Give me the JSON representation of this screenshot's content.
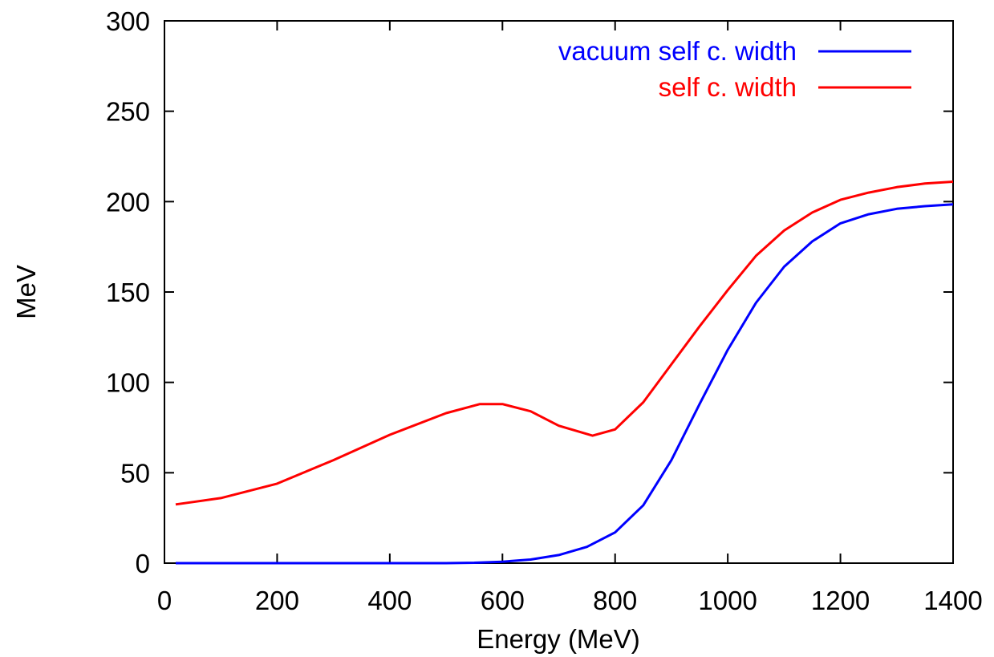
{
  "chart_data": {
    "type": "line",
    "title": "",
    "xlabel": "Energy (MeV)",
    "ylabel": "MeV",
    "xlim": [
      0,
      1400
    ],
    "ylim": [
      0,
      300
    ],
    "xticks": [
      0,
      200,
      400,
      600,
      800,
      1000,
      1200,
      1400
    ],
    "yticks": [
      0,
      50,
      100,
      150,
      200,
      250,
      300
    ],
    "grid": false,
    "legend_position": "top-right",
    "series": [
      {
        "name": "vacuum self c. width",
        "color": "#0000ff",
        "points": [
          [
            20,
            0
          ],
          [
            100,
            0
          ],
          [
            200,
            0
          ],
          [
            300,
            0
          ],
          [
            400,
            0
          ],
          [
            500,
            0
          ],
          [
            550,
            0.2
          ],
          [
            600,
            0.8
          ],
          [
            650,
            2
          ],
          [
            700,
            4.5
          ],
          [
            750,
            9
          ],
          [
            800,
            17
          ],
          [
            850,
            32
          ],
          [
            900,
            57
          ],
          [
            950,
            88
          ],
          [
            1000,
            118
          ],
          [
            1050,
            144
          ],
          [
            1100,
            164
          ],
          [
            1150,
            178
          ],
          [
            1200,
            188
          ],
          [
            1250,
            193
          ],
          [
            1300,
            196
          ],
          [
            1350,
            197.5
          ],
          [
            1400,
            198.5
          ]
        ]
      },
      {
        "name": "self c. width",
        "color": "#ff0000",
        "points": [
          [
            20,
            32.5
          ],
          [
            100,
            36
          ],
          [
            200,
            44
          ],
          [
            300,
            57
          ],
          [
            400,
            71
          ],
          [
            500,
            83
          ],
          [
            560,
            88
          ],
          [
            600,
            88
          ],
          [
            650,
            84
          ],
          [
            700,
            76
          ],
          [
            760,
            70.5
          ],
          [
            800,
            74
          ],
          [
            850,
            89
          ],
          [
            900,
            110
          ],
          [
            950,
            131
          ],
          [
            1000,
            151
          ],
          [
            1050,
            170
          ],
          [
            1100,
            184
          ],
          [
            1150,
            194
          ],
          [
            1200,
            201
          ],
          [
            1250,
            205
          ],
          [
            1300,
            208
          ],
          [
            1350,
            210
          ],
          [
            1400,
            211
          ]
        ]
      }
    ]
  }
}
